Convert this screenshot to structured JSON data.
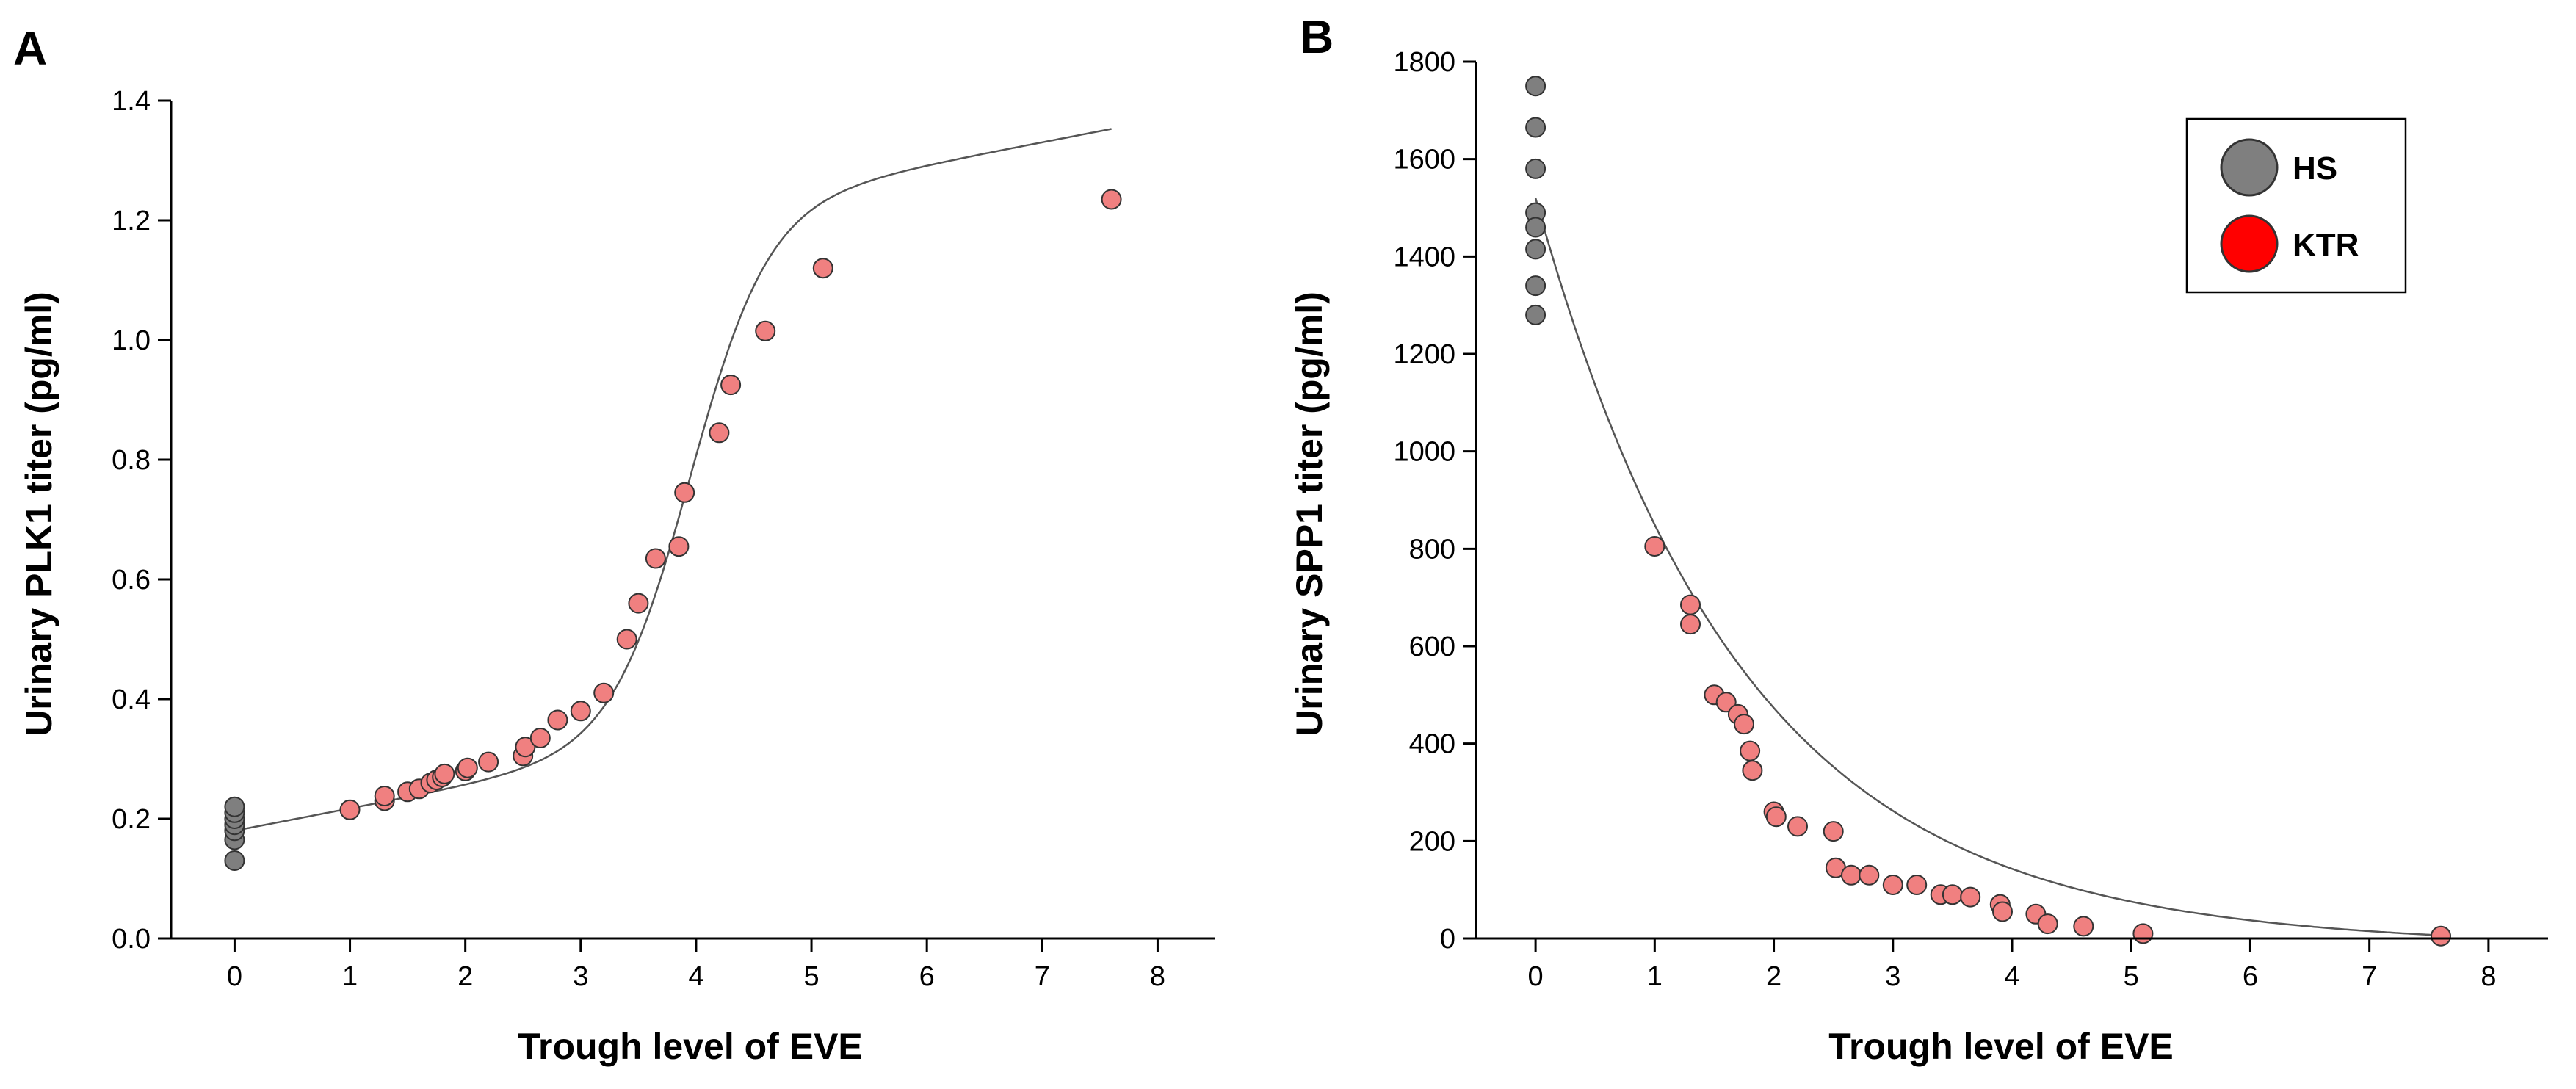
{
  "colors": {
    "hs": "#7f7f7f",
    "ktr": "#f08080",
    "ktr_legend": "#ff0000",
    "marker_edge": "#333333",
    "fit_line": "#555555",
    "axis": "#000000"
  },
  "legend": {
    "position": "top-right",
    "items": [
      {
        "label": "HS",
        "color": "#7f7f7f"
      },
      {
        "label": "KTR",
        "color": "#ff0000"
      }
    ]
  },
  "chart_data": [
    {
      "panel": "A",
      "type": "scatter",
      "xlabel": "Trough level of EVE",
      "ylabel": "Urinary PLK1 titer (pg/ml)",
      "xlim": [
        -0.55,
        8.5
      ],
      "ylim": [
        0,
        1.4
      ],
      "xticks": [
        "0",
        "1",
        "2",
        "3",
        "4",
        "5",
        "6",
        "7",
        "8"
      ],
      "yticks": [
        "0.0",
        "0.2",
        "0.4",
        "0.6",
        "0.8",
        "1.0",
        "1.2",
        "1.4"
      ],
      "grid": false,
      "fit_line": true,
      "series": [
        {
          "name": "HS",
          "points": [
            [
              0,
              0.13
            ],
            [
              0,
              0.165
            ],
            [
              0,
              0.18
            ],
            [
              0,
              0.19
            ],
            [
              0,
              0.2
            ],
            [
              0,
              0.21
            ],
            [
              0,
              0.22
            ]
          ]
        },
        {
          "name": "KTR",
          "points": [
            [
              1.0,
              0.215
            ],
            [
              1.3,
              0.23
            ],
            [
              1.3,
              0.238
            ],
            [
              1.5,
              0.245
            ],
            [
              1.6,
              0.25
            ],
            [
              1.7,
              0.26
            ],
            [
              1.75,
              0.265
            ],
            [
              1.8,
              0.27
            ],
            [
              1.82,
              0.275
            ],
            [
              2.0,
              0.28
            ],
            [
              2.02,
              0.285
            ],
            [
              2.2,
              0.295
            ],
            [
              2.5,
              0.305
            ],
            [
              2.52,
              0.32
            ],
            [
              2.65,
              0.335
            ],
            [
              2.8,
              0.365
            ],
            [
              3.0,
              0.38
            ],
            [
              3.2,
              0.41
            ],
            [
              3.4,
              0.5
            ],
            [
              3.5,
              0.56
            ],
            [
              3.65,
              0.635
            ],
            [
              3.85,
              0.655
            ],
            [
              3.9,
              0.745
            ],
            [
              4.2,
              0.845
            ],
            [
              4.3,
              0.925
            ],
            [
              4.6,
              1.015
            ],
            [
              5.1,
              1.12
            ],
            [
              7.6,
              1.235
            ]
          ]
        }
      ]
    },
    {
      "panel": "B",
      "type": "scatter",
      "xlabel": "Trough level of EVE",
      "ylabel": "Urinary SPP1 titer (pg/ml)",
      "xlim": [
        -0.5,
        8.5
      ],
      "ylim": [
        0,
        1800
      ],
      "xticks": [
        "0",
        "1",
        "2",
        "3",
        "4",
        "5",
        "6",
        "7",
        "8"
      ],
      "yticks": [
        "0",
        "200",
        "400",
        "600",
        "800",
        "1000",
        "1200",
        "1400",
        "1600",
        "1800"
      ],
      "grid": false,
      "fit_line": true,
      "series": [
        {
          "name": "HS",
          "points": [
            [
              0,
              1750
            ],
            [
              0,
              1665
            ],
            [
              0,
              1580
            ],
            [
              0,
              1490
            ],
            [
              0,
              1460
            ],
            [
              0,
              1415
            ],
            [
              0,
              1340
            ],
            [
              0,
              1280
            ]
          ]
        },
        {
          "name": "KTR",
          "points": [
            [
              1.0,
              805
            ],
            [
              1.3,
              685
            ],
            [
              1.3,
              645
            ],
            [
              1.5,
              500
            ],
            [
              1.6,
              485
            ],
            [
              1.7,
              460
            ],
            [
              1.75,
              440
            ],
            [
              1.8,
              385
            ],
            [
              1.82,
              345
            ],
            [
              2.0,
              260
            ],
            [
              2.02,
              250
            ],
            [
              2.2,
              230
            ],
            [
              2.5,
              220
            ],
            [
              2.52,
              145
            ],
            [
              2.65,
              130
            ],
            [
              2.8,
              130
            ],
            [
              3.0,
              110
            ],
            [
              3.2,
              110
            ],
            [
              3.4,
              90
            ],
            [
              3.5,
              90
            ],
            [
              3.65,
              85
            ],
            [
              3.9,
              70
            ],
            [
              3.92,
              55
            ],
            [
              4.2,
              50
            ],
            [
              4.3,
              30
            ],
            [
              4.6,
              25
            ],
            [
              5.1,
              10
            ],
            [
              7.6,
              5
            ]
          ]
        }
      ]
    }
  ]
}
